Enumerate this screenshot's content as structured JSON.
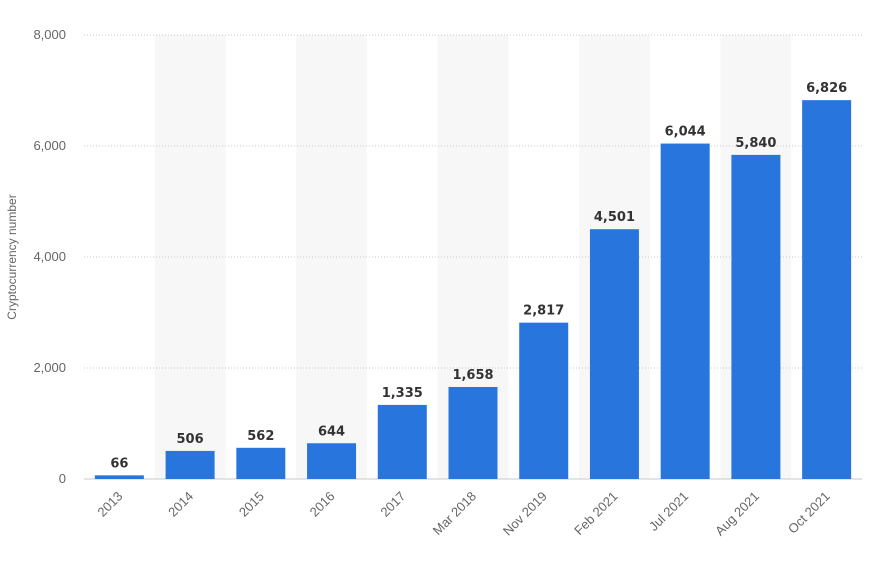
{
  "chart_data": {
    "type": "bar",
    "title": "",
    "xlabel": "",
    "ylabel": "Cryptocurrency number",
    "ylim": [
      0,
      8000
    ],
    "yticks": [
      0,
      2000,
      4000,
      6000,
      8000
    ],
    "ytick_labels": [
      "0",
      "2,000",
      "4,000",
      "6,000",
      "8,000"
    ],
    "categories": [
      "2013",
      "2014",
      "2015",
      "2016",
      "2017",
      "Mar 2018",
      "Nov 2019",
      "Feb 2021",
      "Jul 2021",
      "Aug 2021",
      "Oct 2021"
    ],
    "values": [
      66,
      506,
      562,
      644,
      1335,
      1658,
      2817,
      4501,
      6044,
      5840,
      6826
    ],
    "value_labels": [
      "66",
      "506",
      "562",
      "644",
      "1,335",
      "1,658",
      "2,817",
      "4,501",
      "6,044",
      "5,840",
      "6,826"
    ],
    "grid": true,
    "alternating_band_color": "#f7f7f7",
    "bar_color": "#2876dd",
    "legend": "none"
  }
}
